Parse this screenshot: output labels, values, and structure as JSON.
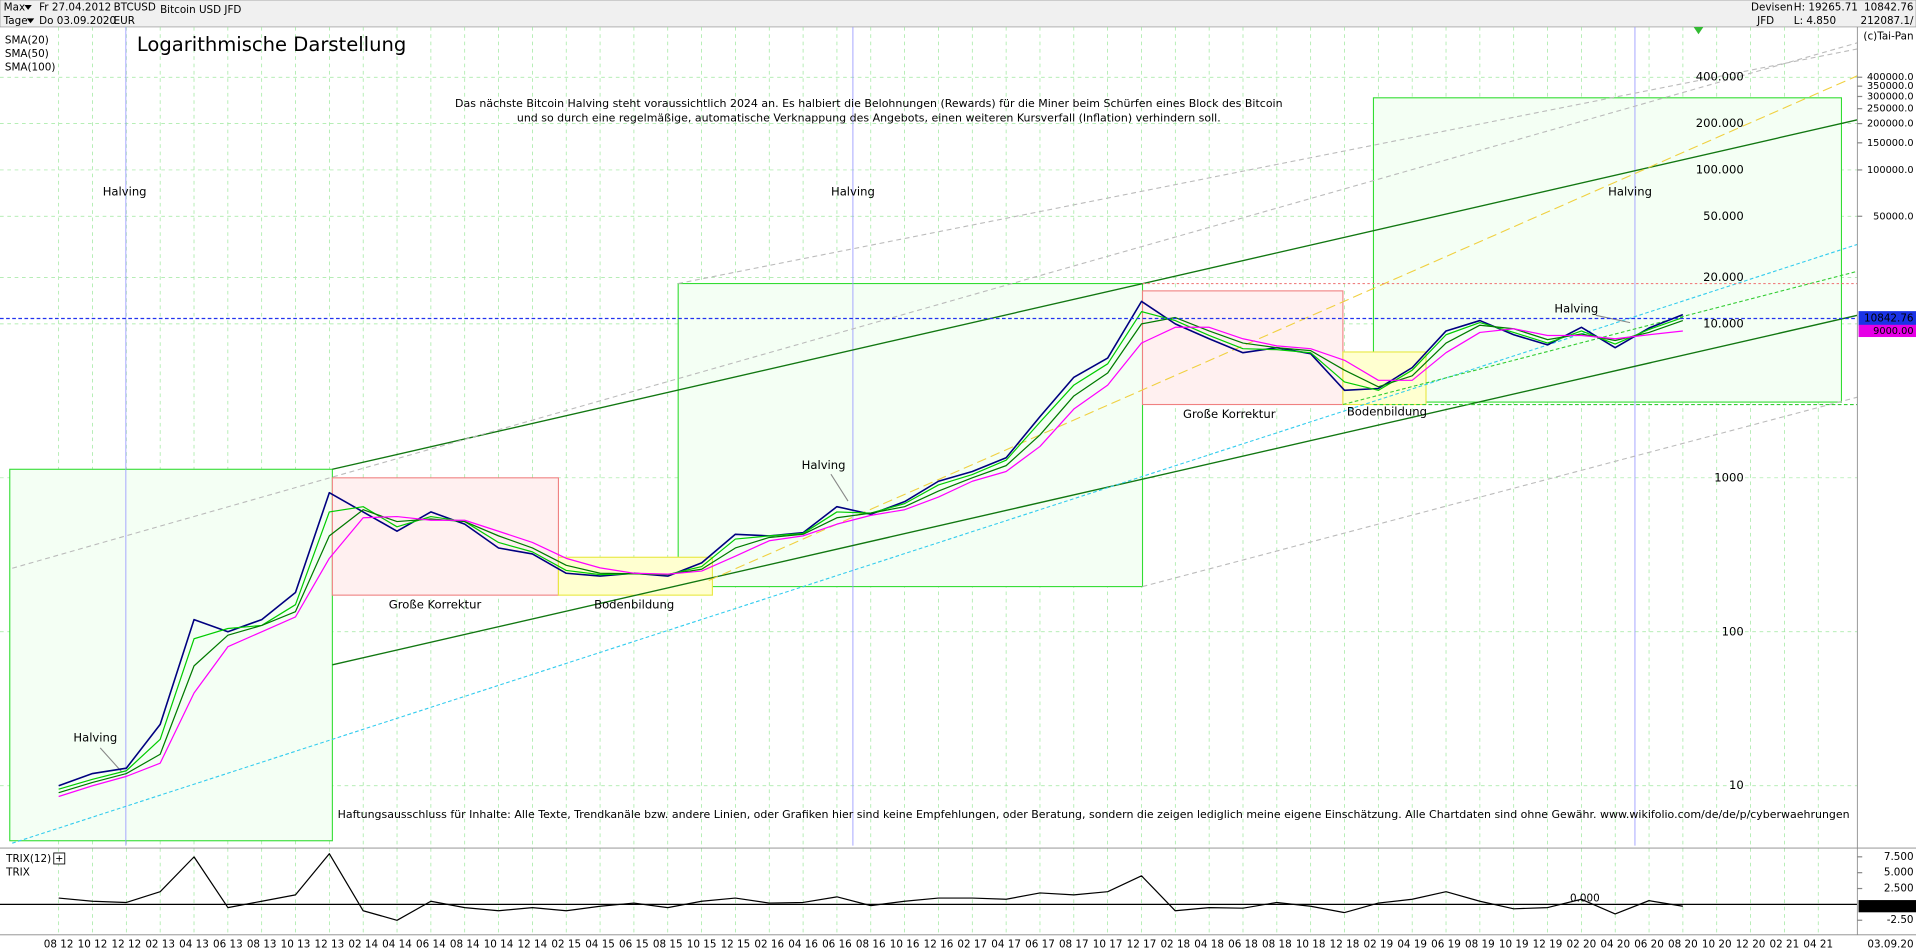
{
  "header": {
    "range": "Max",
    "period": "Tage",
    "from": "Fr 27.04.2012",
    "to": "Do 03.09.2020",
    "symbol": "BTCUSD",
    "currency": "EUR",
    "name": "Bitcoin USD JFD",
    "market": "Devisen",
    "broker": "JFD",
    "high": "H: 19265.71",
    "low": "L: 4.850",
    "last": "10842.76",
    "other": "212087.1/",
    "copyright": "(c)Tai-Pan"
  },
  "chart_data": [
    {
      "type": "line",
      "title": "Logarithmische Darstellung",
      "log_scale": true,
      "grid": true,
      "categories": [
        "08 12",
        "10 12",
        "12 12",
        "02 13",
        "04 13",
        "06 13",
        "08 13",
        "10 13",
        "12 13",
        "02 14",
        "04 14",
        "06 14",
        "08 14",
        "10 14",
        "12 14",
        "02 15",
        "04 15",
        "06 15",
        "08 15",
        "10 15",
        "12 15",
        "02 16",
        "04 16",
        "06 16",
        "08 16",
        "10 16",
        "12 16",
        "02 17",
        "04 17",
        "06 17",
        "08 17",
        "10 17",
        "12 17",
        "02 18",
        "04 18",
        "06 18",
        "08 18",
        "10 18",
        "12 18",
        "02 19",
        "04 19",
        "06 19",
        "08 19",
        "10 19",
        "12 19",
        "02 20",
        "04 20",
        "06 20",
        "08 20",
        "10 20",
        "12 20",
        "02 21",
        "04 21"
      ],
      "current_date_label": "03.09.20",
      "series": [
        {
          "color": "#000080",
          "values": [
            10,
            12,
            13,
            25,
            120,
            100,
            120,
            180,
            800,
            600,
            450,
            600,
            500,
            350,
            320,
            240,
            230,
            240,
            230,
            280,
            430,
            420,
            440,
            650,
            580,
            700,
            950,
            1100,
            1350,
            2500,
            4500,
            6000,
            14000,
            10000,
            8000,
            6500,
            7000,
            6400,
            3700,
            3800,
            5200,
            9000,
            10500,
            8500,
            7300,
            9500,
            7000,
            9400,
            11500,
            null,
            null,
            null,
            null
          ]
        },
        {
          "name": "SMA(20)",
          "color": "#00cc00",
          "values": [
            9.5,
            11,
            12.5,
            20,
            90,
            105,
            110,
            150,
            600,
            650,
            480,
            560,
            520,
            380,
            330,
            250,
            235,
            238,
            235,
            265,
            400,
            420,
            435,
            600,
            590,
            680,
            900,
            1050,
            1300,
            2300,
            4000,
            5500,
            12000,
            10500,
            8400,
            6900,
            6800,
            6500,
            4200,
            3700,
            5000,
            8500,
            10200,
            8800,
            7500,
            9000,
            7400,
            9200,
            11000,
            null,
            null,
            null,
            null
          ]
        },
        {
          "name": "SMA(50)",
          "color": "#007a00",
          "values": [
            9,
            10.5,
            12,
            16,
            60,
            95,
            110,
            135,
            420,
            620,
            520,
            540,
            520,
            420,
            350,
            270,
            240,
            238,
            236,
            255,
            350,
            410,
            430,
            550,
            590,
            650,
            820,
            1000,
            1200,
            1900,
            3400,
            4800,
            10000,
            11000,
            9000,
            7500,
            7000,
            6700,
            5000,
            3900,
            4600,
            7500,
            9800,
            9300,
            7900,
            8600,
            7800,
            8800,
            10500,
            null,
            null,
            null,
            null
          ]
        },
        {
          "name": "SMA(100)",
          "color": "#ff00ff",
          "values": [
            8.5,
            10,
            11.5,
            14,
            40,
            80,
            100,
            125,
            300,
            550,
            560,
            530,
            530,
            450,
            380,
            300,
            260,
            240,
            237,
            248,
            310,
            390,
            420,
            500,
            570,
            620,
            750,
            950,
            1100,
            1600,
            2800,
            4000,
            7500,
            9500,
            9500,
            8000,
            7200,
            6900,
            5800,
            4300,
            4300,
            6500,
            8800,
            9300,
            8400,
            8400,
            8000,
            8500,
            9000,
            null,
            null,
            null,
            null
          ]
        }
      ],
      "ylim": [
        4.08,
        849000
      ],
      "yticks": [
        {
          "value": 400000,
          "label": "400.000"
        },
        {
          "value": 200000,
          "label": "200.000"
        },
        {
          "value": 100000,
          "label": "100.000"
        },
        {
          "value": 50000,
          "label": "50.000"
        },
        {
          "value": 20000,
          "label": "20.000"
        },
        {
          "value": 10000,
          "label": "10.000"
        },
        1000,
        100,
        10
      ],
      "y2lim": [
        4.08,
        849000
      ],
      "y2ticks": [
        {
          "value": 400000,
          "label": "400000.0"
        },
        {
          "value": 350000,
          "label": "350000.0"
        },
        {
          "value": 300000,
          "label": "300000.0"
        },
        {
          "value": 250000,
          "label": "250000.0"
        },
        {
          "value": 200000,
          "label": "200000.0"
        },
        {
          "value": 150000,
          "label": "150000.0"
        },
        {
          "value": 100000,
          "label": "100000.0"
        },
        {
          "value": 50000,
          "label": "50000.0"
        }
      ],
      "last_price": 10842.76,
      "sma_marker": {
        "value": 9000,
        "label": "9000.00"
      },
      "annotations": [
        "Halving",
        "Halving",
        "Halving",
        "Halving",
        "Halving",
        "Halving",
        "Große Korrektur",
        "Große Korrektur",
        "Bodenbildung",
        "Bodenbildung"
      ],
      "note": [
        "Das nächste Bitcoin Halving steht voraussichtlich 2024 an. Es halbiert die Belohnungen (Rewards) für die Miner beim Schürfen eines Block des Bitcoin",
        "und so durch eine regelmäßige, automatische Verknappung des Angebots, einen weiteren Kursverfall (Inflation) verhindern soll."
      ],
      "disclaimer": "Haftungsausschluss für Inhalte: Alle Texte, Trendkanäle bzw. andere Linien, oder Grafiken hier sind keine Empfehlungen, oder Beratung, sondern die zeigen lediglich meine eigene Einschätzung. Alle Chartdaten sind ohne Gewähr.  www.wikifolio.com/de/de/p/cyberwaehrungen"
    },
    {
      "type": "line",
      "title": "TRIX(12)",
      "subtitle": "TRIX",
      "series": [
        {
          "color": "#000000",
          "values": [
            1,
            0.5,
            0.3,
            2,
            7.5,
            -0.5,
            0.5,
            1.5,
            8,
            -1,
            -2.5,
            0.5,
            -0.5,
            -1,
            -0.5,
            -1,
            -0.3,
            0.2,
            -0.5,
            0.5,
            1,
            0.2,
            0.3,
            1.2,
            -0.2,
            0.5,
            1,
            1,
            0.8,
            1.8,
            1.5,
            2,
            4.5,
            -1,
            -0.5,
            -0.6,
            0.3,
            -0.3,
            -1.3,
            0.2,
            0.8,
            2,
            0.5,
            -0.7,
            -0.5,
            0.8,
            -1.5,
            0.6,
            -0.284,
            null,
            null,
            null,
            null
          ]
        }
      ],
      "ylim": [
        -4.8,
        8.3
      ],
      "yticks": [
        {
          "value": 7.5,
          "label": "7.500"
        },
        {
          "value": 5,
          "label": "5.000"
        },
        {
          "value": 2.5,
          "label": "2.500"
        },
        {
          "value": -2.5,
          "label": "-2.50"
        }
      ],
      "zero_line": {
        "value": 0,
        "label": "0.000"
      },
      "last_value": -0.284
    }
  ]
}
